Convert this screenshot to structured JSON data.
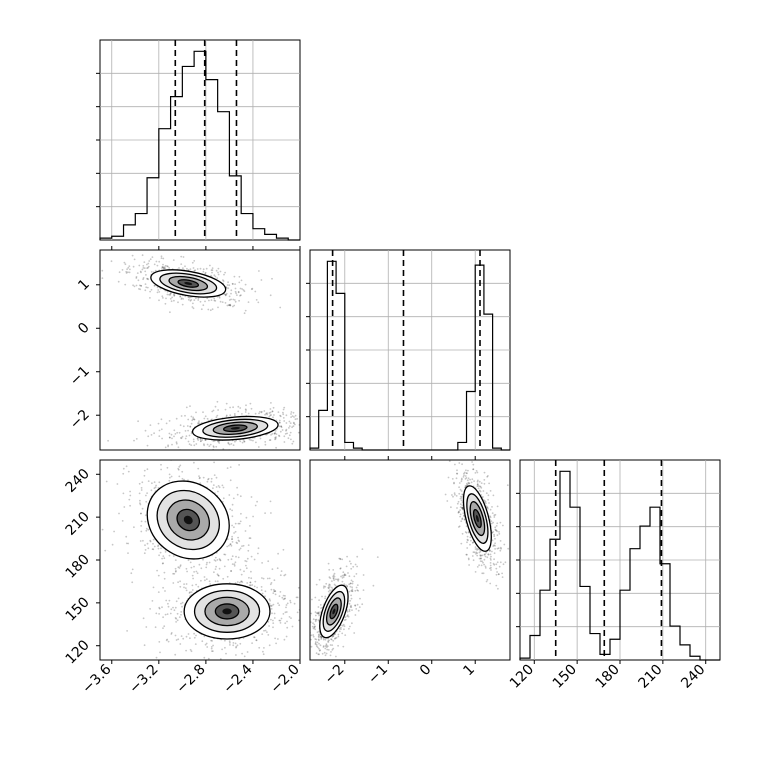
{
  "chart_data": {
    "type": "scatter",
    "style": {
      "line_color": "#000000",
      "grid": true,
      "background": "#ffffff"
    },
    "variables": [
      {
        "quantiles": [
          -3.06,
          -2.81,
          -2.54
        ],
        "ticks": [
          -3.6,
          -3.2,
          -2.8,
          -2.4,
          -2.0
        ],
        "tick_labels": [
          "−3.6",
          "−3.2",
          "−2.8",
          "−2.4",
          "−2.0"
        ]
      },
      {
        "quantiles": [
          -2.28,
          -0.65,
          1.11
        ],
        "ticks": [
          -2,
          -1,
          0,
          1
        ],
        "tick_labels": [
          "−2",
          "−1",
          "0",
          "1"
        ]
      },
      {
        "quantiles": [
          135,
          169,
          209
        ],
        "ticks": [
          120,
          150,
          180,
          210,
          240
        ],
        "tick_labels": [
          "120",
          "150",
          "180",
          "210",
          "240"
        ]
      }
    ],
    "hist_1": {
      "bin_edges": [
        -3.7,
        -3.6,
        -3.5,
        -3.4,
        -3.3,
        -3.2,
        -3.1,
        -3.0,
        -2.9,
        -2.8,
        -2.7,
        -2.6,
        -2.5,
        -2.4,
        -2.3,
        -2.2,
        -2.1,
        -2.0
      ],
      "counts": [
        1,
        2,
        8,
        14,
        33,
        59,
        76,
        92,
        100,
        85,
        68,
        34,
        14,
        6,
        3,
        1,
        0
      ]
    },
    "hist_2": {
      "bin_edges": [
        -2.8,
        -2.6,
        -2.4,
        -2.2,
        -2.0,
        -1.8,
        -1.6,
        -1.4,
        -1.2,
        -1.0,
        -0.8,
        -0.6,
        -0.4,
        -0.2,
        0.0,
        0.2,
        0.4,
        0.6,
        0.8,
        1.0,
        1.2,
        1.4,
        1.6,
        1.8
      ],
      "counts": [
        1,
        21,
        100,
        83,
        4,
        1,
        0,
        0,
        0,
        0,
        0,
        0,
        0,
        0,
        0,
        0,
        0,
        4,
        31,
        98,
        72,
        1,
        0
      ]
    },
    "hist_3": {
      "bin_edges": [
        110,
        117,
        124,
        131,
        138,
        145,
        152,
        159,
        166,
        173,
        180,
        187,
        194,
        201,
        208,
        215,
        222,
        229,
        236,
        243,
        250
      ],
      "counts": [
        1,
        13,
        37,
        64,
        100,
        81,
        39,
        14,
        3,
        11,
        37,
        59,
        71,
        81,
        51,
        18,
        8,
        2,
        0,
        0
      ]
    },
    "scatter_pairs": [
      {
        "x_var": 1,
        "y_var": 2,
        "clusters": [
          {
            "mean": [
              -2.95,
              1.03
            ],
            "sd": [
              0.15,
              0.13
            ]
          },
          {
            "mean": [
              -2.55,
              -2.3
            ],
            "sd": [
              0.17,
              0.12
            ]
          }
        ]
      },
      {
        "x_var": 1,
        "y_var": 3,
        "clusters": [
          {
            "mean": [
              -2.95,
              208
            ],
            "sd": [
              0.17,
              12
            ]
          },
          {
            "mean": [
              -2.62,
              144
            ],
            "sd": [
              0.17,
              9
            ]
          }
        ]
      },
      {
        "x_var": 2,
        "y_var": 3,
        "clusters": [
          {
            "mean": [
              -2.25,
              144
            ],
            "sd": [
              0.12,
              9
            ]
          },
          {
            "mean": [
              1.05,
              209
            ],
            "sd": [
              0.12,
              11
            ]
          }
        ]
      }
    ]
  }
}
